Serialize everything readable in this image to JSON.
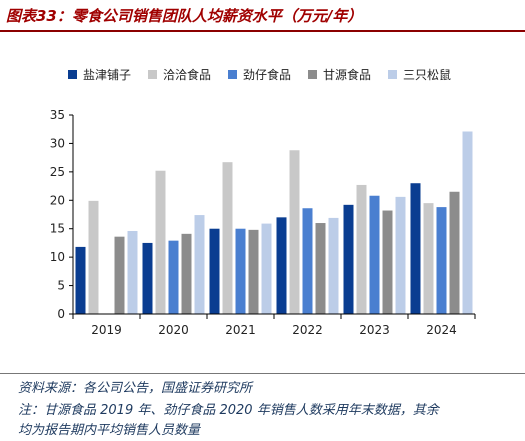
{
  "header": {
    "title": "图表33：零食公司销售团队人均薪资水平（万元/年）"
  },
  "chart_data": {
    "type": "bar",
    "categories": [
      "2019",
      "2020",
      "2021",
      "2022",
      "2023",
      "2024"
    ],
    "series": [
      {
        "name": "盐津铺子",
        "color": "#0a3d91",
        "values": [
          11.8,
          12.5,
          15.0,
          17.0,
          19.2,
          23.0
        ]
      },
      {
        "name": "洽洽食品",
        "color": "#c8c8c8",
        "values": [
          19.9,
          25.2,
          26.7,
          28.8,
          22.7,
          19.5
        ]
      },
      {
        "name": "劲仔食品",
        "color": "#4a7fd0",
        "values": [
          null,
          12.9,
          15.0,
          18.6,
          20.8,
          18.8
        ]
      },
      {
        "name": "甘源食品",
        "color": "#8c8c8c",
        "values": [
          13.6,
          14.1,
          14.8,
          16.0,
          18.2,
          21.5
        ]
      },
      {
        "name": "三只松鼠",
        "color": "#bccde8",
        "values": [
          14.6,
          17.4,
          15.9,
          16.9,
          20.6,
          32.1
        ]
      }
    ],
    "ylim": [
      0,
      35
    ],
    "yticks": [
      0,
      5,
      10,
      15,
      20,
      25,
      30,
      35
    ],
    "xlabel": "",
    "ylabel": "",
    "grid": false,
    "legend_position": "top"
  },
  "footer": {
    "source": "资料来源：各公司公告，国盛证券研究所",
    "note_line1": "注：甘源食品 2019 年、劲仔食品 2020 年销售人数采用年末数据，其余",
    "note_line2": "均为报告期内平均销售人员数量"
  }
}
